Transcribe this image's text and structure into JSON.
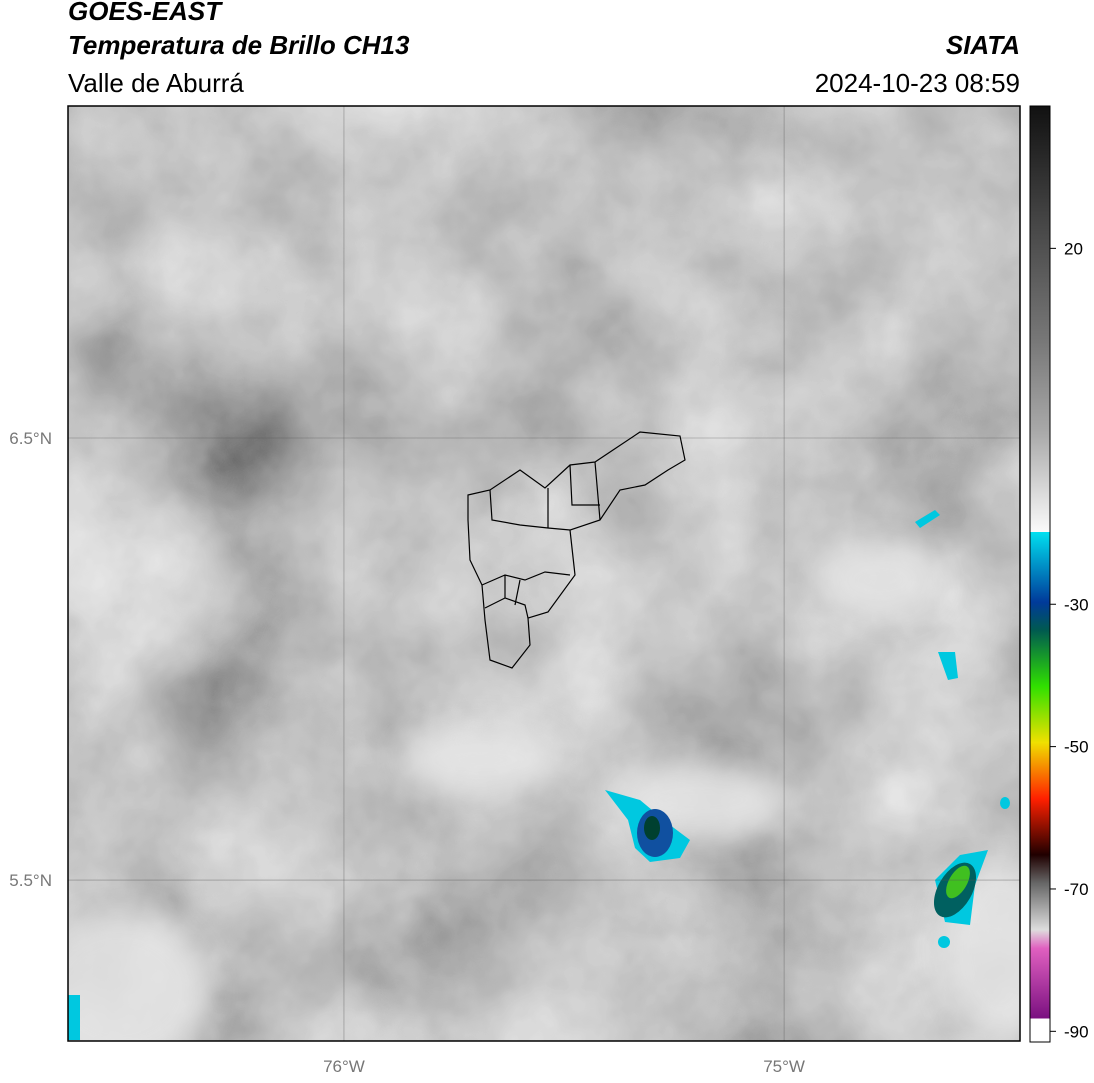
{
  "header": {
    "title": "GOES-EAST",
    "subtitle": "Temperatura de Brillo CH13",
    "region": "Valle de Aburrá",
    "source": "SIATA",
    "timestamp": "2024-10-23 08:59"
  },
  "map": {
    "lon_range": [
      -76.627,
      -74.464
    ],
    "lat_range": [
      5.136,
      7.251
    ],
    "lon_ticks": [
      {
        "value": -76,
        "label": "76°W"
      },
      {
        "value": -75,
        "label": "75°W"
      }
    ],
    "lat_ticks": [
      {
        "value": 6.5,
        "label": "6.5°N"
      },
      {
        "value": 5.5,
        "label": "5.5°N"
      }
    ]
  },
  "colorbar": {
    "range": [
      -91.5,
      40
    ],
    "ticks": [
      20,
      -30,
      -50,
      -70,
      -90
    ]
  }
}
